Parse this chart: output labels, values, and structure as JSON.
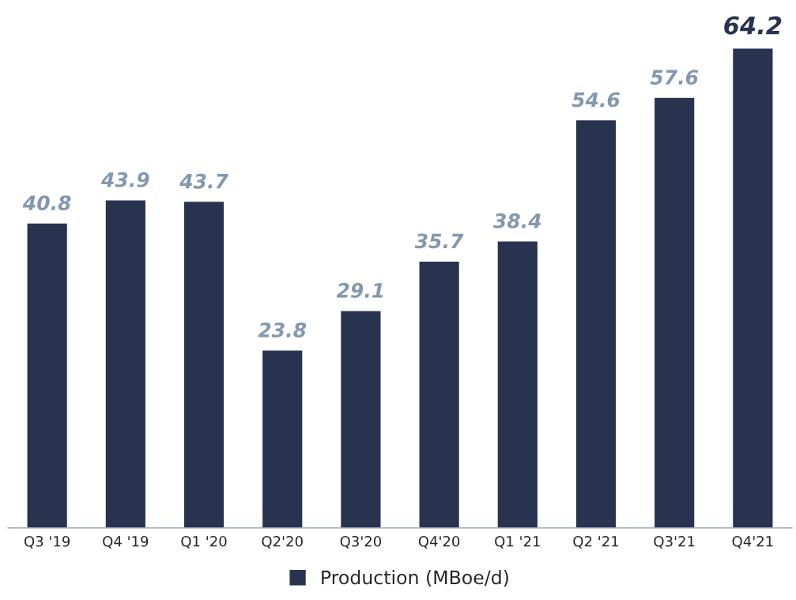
{
  "chart_data": {
    "type": "bar",
    "categories": [
      "Q3 '19",
      "Q4 '19",
      "Q1 '20",
      "Q2'20",
      "Q3'20",
      "Q4'20",
      "Q1 '21",
      "Q2 '21",
      "Q3'21",
      "Q4'21"
    ],
    "series": [
      {
        "name": "Production (MBoe/d)",
        "color": "#283350",
        "values": [
          40.8,
          43.9,
          43.7,
          23.8,
          29.1,
          35.7,
          38.4,
          54.6,
          57.6,
          64.2
        ]
      }
    ],
    "data_labels": true,
    "legend": "bottom",
    "grid": false
  }
}
